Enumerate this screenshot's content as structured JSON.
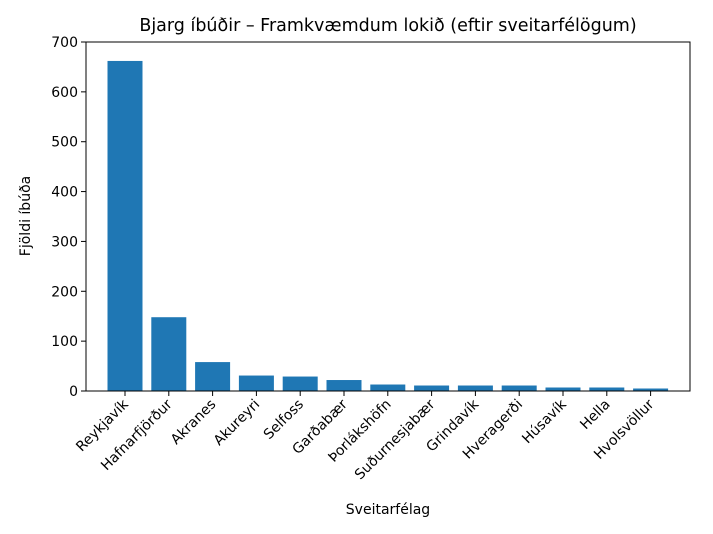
{
  "chart_data": {
    "type": "bar",
    "title": "Bjarg íbúðir – Framkvæmdum lokið (eftir sveitarfélögum)",
    "xlabel": "Sveitarfélag",
    "ylabel": "Fjöldi íbúða",
    "ylim": [
      0,
      700
    ],
    "yticks": [
      "0",
      "100",
      "200",
      "300",
      "400",
      "500",
      "600",
      "700"
    ],
    "categories": [
      "Reykjavík",
      "Hafnarfjörður",
      "Akranes",
      "Akureyri",
      "Selfoss",
      "Garðabær",
      "Þorlákshöfn",
      "Suðurnesjabær",
      "Grindavík",
      "Hveragerði",
      "Húsavík",
      "Hella",
      "Hvolsvöllur"
    ],
    "values": [
      662,
      148,
      58,
      31,
      29,
      22,
      13,
      11,
      11,
      11,
      7,
      7,
      5
    ],
    "bar_color": "#1f77b4",
    "grid": false
  }
}
